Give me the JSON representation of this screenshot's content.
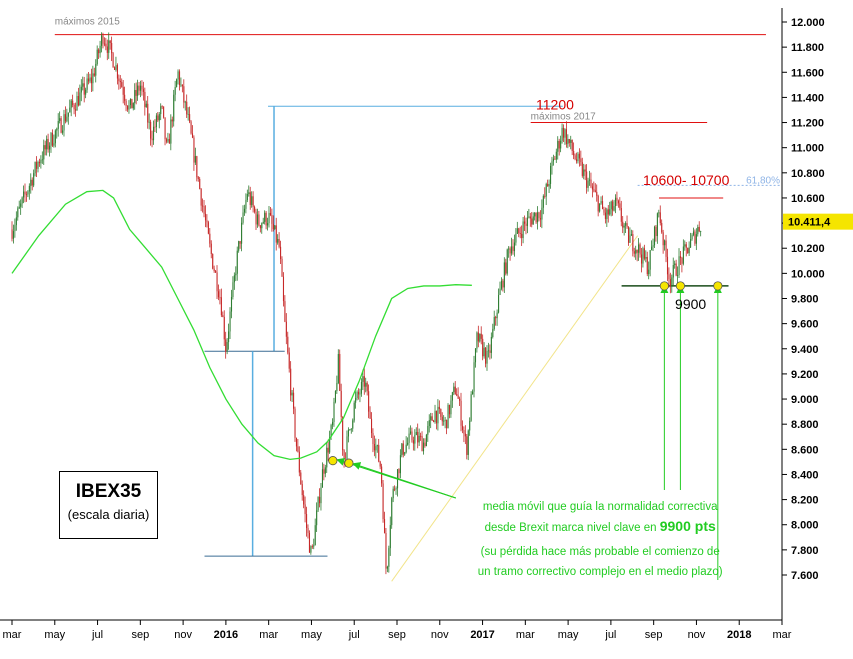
{
  "chart_data": {
    "type": "candlestick",
    "title": "IBEX35",
    "subtitle": "(escala diaria)",
    "ylim": [
      7450,
      12000
    ],
    "y_ticks": [
      "12.000",
      "11.800",
      "11.600",
      "11.400",
      "11.200",
      "11.000",
      "10.800",
      "10.600",
      "10.400",
      "10.200",
      "10.000",
      "9.800",
      "9.600",
      "9.400",
      "9.200",
      "9.000",
      "8.800",
      "8.600",
      "8.400",
      "8.200",
      "8.000",
      "7.800",
      "7.600"
    ],
    "y_tick_values": [
      12000,
      11800,
      11600,
      11400,
      11200,
      11000,
      10800,
      10600,
      10400,
      10200,
      10000,
      9800,
      9600,
      9400,
      9200,
      9000,
      8800,
      8600,
      8400,
      8200,
      8000,
      7800,
      7600
    ],
    "x_ticks": [
      "mar",
      "may",
      "jul",
      "sep",
      "nov",
      "2016",
      "mar",
      "may",
      "jul",
      "sep",
      "nov",
      "2017",
      "mar",
      "may",
      "jul",
      "sep",
      "nov",
      "2018",
      "mar"
    ],
    "x_year_ticks": [
      "2016",
      "2017",
      "2018"
    ],
    "last_price_label": "10.411,4",
    "last_price": 10411.4,
    "price_path": [
      [
        0,
        10350
      ],
      [
        5,
        10900
      ],
      [
        10,
        11250
      ],
      [
        15,
        11550
      ],
      [
        17,
        11900
      ],
      [
        19,
        11700
      ],
      [
        22,
        11300
      ],
      [
        24,
        11500
      ],
      [
        26,
        11100
      ],
      [
        28,
        11300
      ],
      [
        29,
        10950
      ],
      [
        31,
        11600
      ],
      [
        33,
        11200
      ],
      [
        35,
        10700
      ],
      [
        37,
        10200
      ],
      [
        39,
        9800
      ],
      [
        40,
        9400
      ],
      [
        42,
        10100
      ],
      [
        44,
        10650
      ],
      [
        46,
        10400
      ],
      [
        48,
        10450
      ],
      [
        50,
        10200
      ],
      [
        51,
        9600
      ],
      [
        53,
        8700
      ],
      [
        55,
        8000
      ],
      [
        56,
        7750
      ],
      [
        58,
        8400
      ],
      [
        60,
        8800
      ],
      [
        61,
        9300
      ],
      [
        62,
        8500
      ],
      [
        64,
        8950
      ],
      [
        66,
        9150
      ],
      [
        67,
        8800
      ],
      [
        69,
        8450
      ],
      [
        70,
        7600
      ],
      [
        71,
        8200
      ],
      [
        73,
        8600
      ],
      [
        75,
        8700
      ],
      [
        77,
        8650
      ],
      [
        79,
        8900
      ],
      [
        81,
        8800
      ],
      [
        83,
        9100
      ],
      [
        85,
        8600
      ],
      [
        87,
        9500
      ],
      [
        89,
        9300
      ],
      [
        91,
        9800
      ],
      [
        93,
        10200
      ],
      [
        96,
        10400
      ],
      [
        99,
        10500
      ],
      [
        101,
        10850
      ],
      [
        103,
        11150
      ],
      [
        105,
        10950
      ],
      [
        108,
        10700
      ],
      [
        111,
        10450
      ],
      [
        113,
        10550
      ],
      [
        115,
        10300
      ],
      [
        117,
        10200
      ],
      [
        119,
        10050
      ],
      [
        121,
        10500
      ],
      [
        122,
        10200
      ],
      [
        123,
        9950
      ],
      [
        125,
        10100
      ],
      [
        127,
        10250
      ],
      [
        129,
        10411
      ]
    ],
    "sma_path": [
      [
        0,
        10000
      ],
      [
        5,
        10300
      ],
      [
        10,
        10550
      ],
      [
        14,
        10650
      ],
      [
        17,
        10660
      ],
      [
        19,
        10600
      ],
      [
        22,
        10350
      ],
      [
        25,
        10200
      ],
      [
        28,
        10050
      ],
      [
        31,
        9800
      ],
      [
        34,
        9550
      ],
      [
        37,
        9250
      ],
      [
        40,
        9000
      ],
      [
        43,
        8800
      ],
      [
        46,
        8650
      ],
      [
        49,
        8550
      ],
      [
        52,
        8520
      ],
      [
        54,
        8530
      ],
      [
        57,
        8580
      ],
      [
        59,
        8660
      ],
      [
        62,
        8850
      ],
      [
        65,
        9150
      ],
      [
        68,
        9500
      ],
      [
        71,
        9800
      ],
      [
        74,
        9880
      ],
      [
        77,
        9900
      ],
      [
        80,
        9900
      ],
      [
        83,
        9910
      ],
      [
        86,
        9905
      ]
    ],
    "levels": [
      {
        "label": "máximos 2015",
        "value": 11900
      },
      {
        "label": "11200",
        "sublabel": "máximos 2017",
        "value": 11200
      },
      {
        "label": "10600- 10700",
        "value": 10600
      },
      {
        "label": "61,80%",
        "value": 10700
      },
      {
        "label": "9900",
        "value": 9900
      }
    ],
    "sma_touch_points": [
      {
        "x": 60,
        "y": 8510
      },
      {
        "x": 63,
        "y": 8490
      },
      {
        "x": 122,
        "y": 9900
      },
      {
        "x": 125,
        "y": 9900
      },
      {
        "x": 132,
        "y": 9900
      }
    ],
    "measure_ranges": [
      {
        "x": 49,
        "low": 9380,
        "high": 11330
      },
      {
        "x": 45,
        "low": 7750,
        "high": 9380
      }
    ],
    "annotation_lines": [
      "media móvil que guía la normalidad correctiva",
      "desde Brexit marca nivel clave en",
      "9900 pts",
      "(su pérdida hace más probable el comienzo de",
      "un tramo correctivo complejo en el medio plazo)"
    ],
    "colors": {
      "up": "#2e7d32",
      "down": "#c62828",
      "sma": "#33dd33",
      "resistance": "#e01010",
      "measure": "#58aee0",
      "trendline": "#f2e48a",
      "touch_point": "#f5e500",
      "annotation": "#22cc22",
      "fib": "#8fb4e6"
    }
  }
}
